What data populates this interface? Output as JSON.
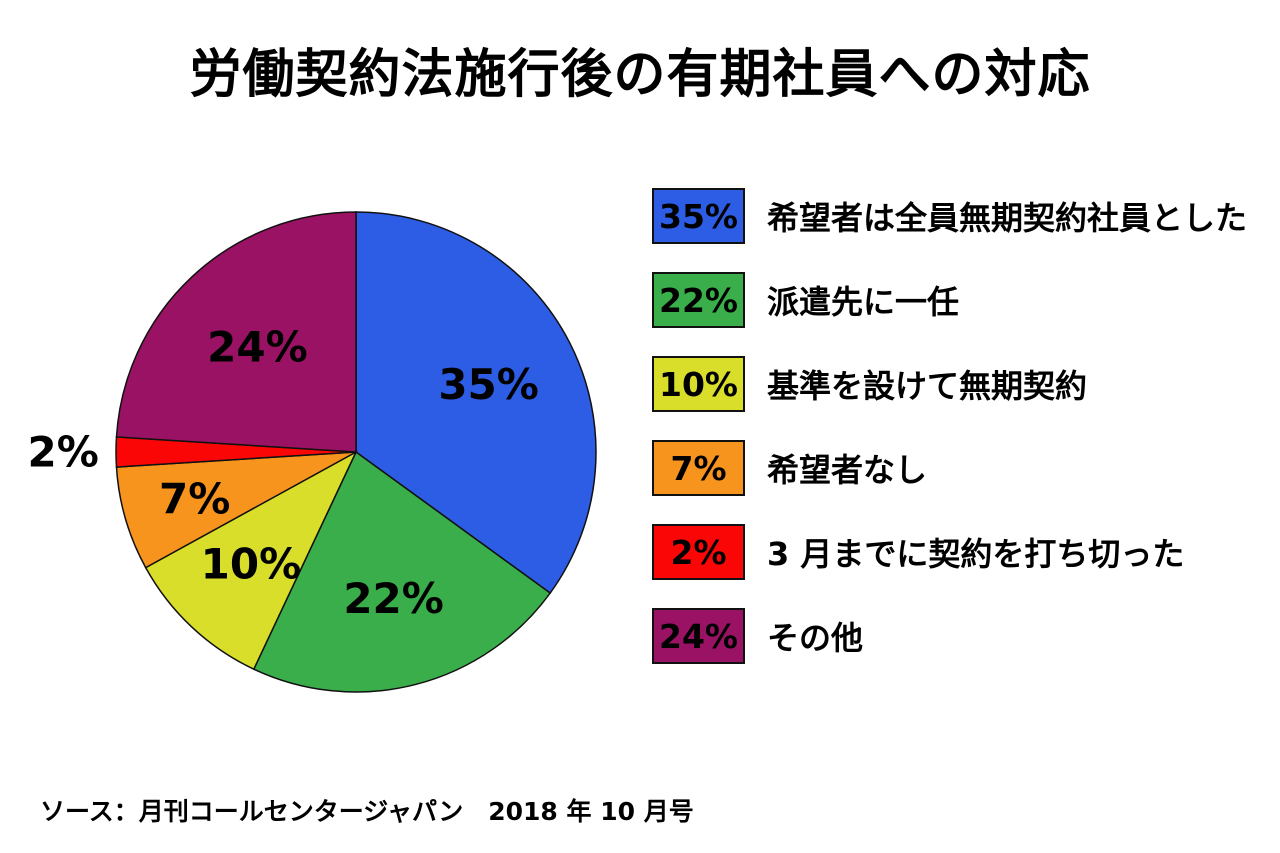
{
  "title": "労働契約法施行後の有期社員への対応",
  "source": "ソース：月刊コールセンタージャパン　2018 年 10 月号",
  "chart_data": {
    "type": "pie",
    "title": "労働契約法施行後の有期社員への対応",
    "start_angle_deg": 0,
    "direction": "clockwise",
    "legend_position": "right",
    "slices": [
      {
        "label": "希望者は全員無期契約社員とした",
        "value": 35,
        "pct_label": "35%",
        "color": "#2D5DE4",
        "label_r": 0.62,
        "label_outside": false
      },
      {
        "label": "派遣先に一任",
        "value": 22,
        "pct_label": "22%",
        "color": "#3AAE4A",
        "label_r": 0.63,
        "label_outside": false
      },
      {
        "label": "基準を設けて無期契約",
        "value": 10,
        "pct_label": "10%",
        "color": "#D9DE2B",
        "label_r": 0.64,
        "label_outside": false
      },
      {
        "label": "希望者なし",
        "value": 7,
        "pct_label": "7%",
        "color": "#F7941E",
        "label_r": 0.7,
        "label_outside": false
      },
      {
        "label": "3 月までに契約を打ち切った",
        "value": 2,
        "pct_label": "2%",
        "color": "#FB0606",
        "label_r": 1.22,
        "label_outside": true
      },
      {
        "label": "その他",
        "value": 24,
        "pct_label": "24%",
        "color": "#9A1263",
        "label_r": 0.6,
        "label_outside": false
      }
    ]
  }
}
